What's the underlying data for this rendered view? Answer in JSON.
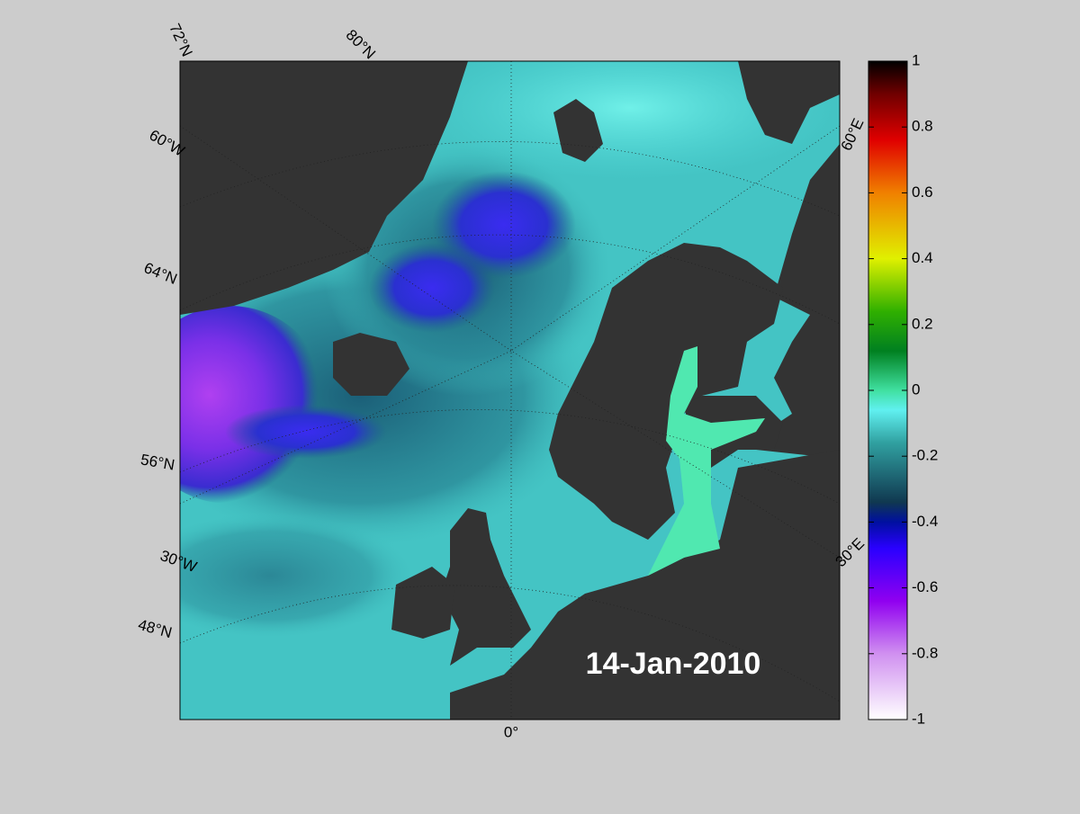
{
  "map": {
    "date": "14-Jan-2010",
    "labels": [
      "72°N",
      "80°N",
      "60°W",
      "64°N",
      "56°N",
      "30°W",
      "48°N",
      "0°",
      "30°E",
      "60°E"
    ]
  },
  "colorbar": {
    "lim": [
      -1,
      1
    ],
    "ticks": [
      1,
      0.8,
      0.6,
      0.4,
      0.2,
      0,
      -0.2,
      -0.4,
      -0.6,
      -0.8,
      -1
    ]
  }
}
